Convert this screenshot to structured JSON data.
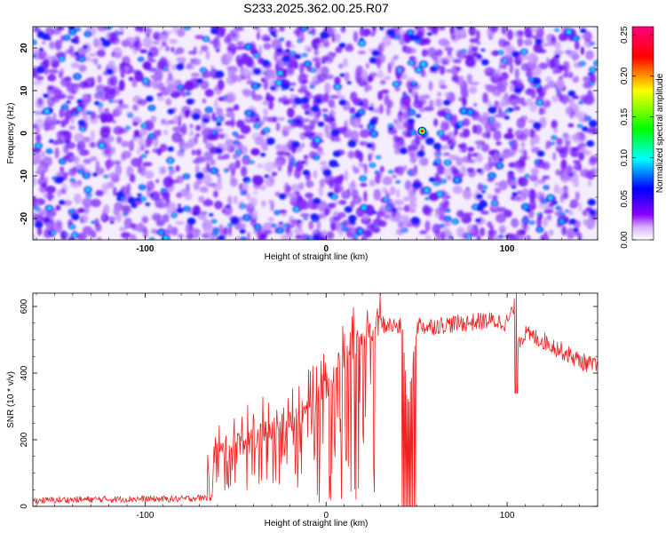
{
  "title": "S233.2025.362.00.25.R07",
  "chart_data": [
    {
      "type": "heatmap",
      "xlabel": "Height of straight line (km)",
      "ylabel": "Frequency (Hz)",
      "xlim": [
        -162,
        150
      ],
      "ylim": [
        -25,
        25
      ],
      "xticks": [
        -100,
        0,
        100
      ],
      "yticks": [
        -20,
        -10,
        0,
        10,
        20
      ],
      "colorbar": {
        "label": "Normalized spectral amplitude",
        "range": [
          0,
          0.26
        ],
        "ticks": [
          0.0,
          0.05,
          0.1,
          0.15,
          0.2,
          0.25
        ],
        "tick_labels": [
          "0.00",
          "0.05",
          "0.10",
          "0.15",
          "0.20",
          "0.25"
        ],
        "colors": [
          "#ffffff",
          "#8800ff",
          "#0000ff",
          "#00ffff",
          "#00ff00",
          "#ffff00",
          "#ff0000",
          "#ff0080"
        ]
      },
      "peak": {
        "x": 53,
        "y": 0.5,
        "value": 0.26
      }
    },
    {
      "type": "line",
      "xlabel": "Height of straight line (km)",
      "ylabel": "SNR (10 * v/v)",
      "xlim": [
        -162,
        150
      ],
      "ylim": [
        0,
        640
      ],
      "xticks": [
        -100,
        0,
        100
      ],
      "yticks": [
        0,
        200,
        400,
        600
      ],
      "series": [
        {
          "name": "SNR",
          "color": "#ee2222",
          "x": [
            -162,
            -140,
            -110,
            -80,
            -66,
            -64,
            -62,
            -50,
            -40,
            -30,
            -20,
            -10,
            0,
            5,
            10,
            15,
            20,
            25,
            30,
            42,
            45,
            50,
            52,
            55,
            60,
            70,
            80,
            90,
            100,
            104,
            106,
            110,
            120,
            130,
            140,
            150
          ],
          "values": [
            15,
            18,
            20,
            20,
            25,
            60,
            150,
            190,
            200,
            230,
            260,
            300,
            350,
            420,
            450,
            480,
            500,
            530,
            550,
            540,
            300,
            540,
            550,
            540,
            545,
            550,
            555,
            560,
            555,
            600,
            500,
            520,
            500,
            470,
            440,
            420
          ]
        }
      ],
      "dropouts": [
        {
          "from": 42,
          "to": 50,
          "value": 0
        }
      ]
    }
  ]
}
